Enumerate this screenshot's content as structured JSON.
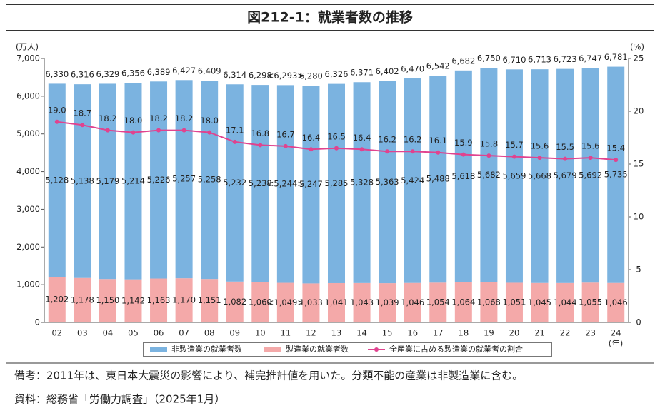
{
  "chart_data": {
    "type": "bar-line",
    "title": "図212-1：就業者数の推移",
    "y_unit": "(万人)",
    "y2_unit": "(%)",
    "x_unit": "(年)",
    "categories": [
      "02",
      "03",
      "04",
      "05",
      "06",
      "07",
      "08",
      "09",
      "10",
      "11",
      "12",
      "13",
      "14",
      "15",
      "16",
      "17",
      "18",
      "19",
      "20",
      "21",
      "22",
      "23",
      "24"
    ],
    "total_labels": [
      "6,330",
      "6,316",
      "6,329",
      "6,356",
      "6,389",
      "6,427",
      "6,409",
      "6,314",
      "6,298",
      "<6,293>",
      "6,280",
      "6,326",
      "6,371",
      "6,402",
      "6,470",
      "6,542",
      "6,682",
      "6,750",
      "6,710",
      "6,713",
      "6,723",
      "6,747",
      "6,781"
    ],
    "series": [
      {
        "name": "非製造業の就業者数",
        "color": "#7bb3e0",
        "values": [
          5128,
          5138,
          5179,
          5214,
          5226,
          5257,
          5258,
          5232,
          5238,
          5244,
          5247,
          5285,
          5328,
          5363,
          5424,
          5488,
          5618,
          5682,
          5659,
          5668,
          5679,
          5692,
          5735
        ],
        "value_labels": [
          "5,128",
          "5,138",
          "5,179",
          "5,214",
          "5,226",
          "5,257",
          "5,258",
          "5,232",
          "5,238",
          "<5,244>",
          "5,247",
          "5,285",
          "5,328",
          "5,363",
          "5,424",
          "5,488",
          "5,618",
          "5,682",
          "5,659",
          "5,668",
          "5,679",
          "5,692",
          "5,735"
        ]
      },
      {
        "name": "製造業の就業者数",
        "color": "#f4a9a9",
        "values": [
          1202,
          1178,
          1150,
          1142,
          1163,
          1170,
          1151,
          1082,
          1060,
          1049,
          1033,
          1041,
          1043,
          1039,
          1046,
          1054,
          1064,
          1068,
          1051,
          1045,
          1044,
          1055,
          1046
        ],
        "value_labels": [
          "1,202",
          "1,178",
          "1,150",
          "1,142",
          "1,163",
          "1,170",
          "1,151",
          "1,082",
          "1,060",
          "<1,049>",
          "1,033",
          "1,041",
          "1,043",
          "1,039",
          "1,046",
          "1,054",
          "1,064",
          "1,068",
          "1,051",
          "1,045",
          "1,044",
          "1,055",
          "1,046"
        ]
      },
      {
        "name": "全産業に占める製造業の就業者の割合",
        "color": "#e0438f",
        "axis": "y2",
        "values": [
          19.0,
          18.7,
          18.2,
          18.0,
          18.2,
          18.2,
          18.0,
          17.1,
          16.8,
          16.7,
          16.4,
          16.5,
          16.4,
          16.2,
          16.2,
          16.1,
          15.9,
          15.8,
          15.7,
          15.6,
          15.5,
          15.6,
          15.4
        ],
        "value_labels": [
          "19.0",
          "18.7",
          "18.2",
          "18.0",
          "18.2",
          "18.2",
          "18.0",
          "17.1",
          "16.8",
          "16.7",
          "16.4",
          "16.5",
          "16.4",
          "16.2",
          "16.2",
          "16.1",
          "15.9",
          "15.8",
          "15.7",
          "15.6",
          "15.5",
          "15.6",
          "15.4"
        ]
      }
    ],
    "ylim": [
      0,
      7000
    ],
    "yticks": [
      0,
      {
        "value": 1000,
        "label": "1,000"
      },
      {
        "value": 2000,
        "label": "2,000"
      },
      {
        "value": 3000,
        "label": "3,000"
      },
      {
        "value": 4000,
        "label": "4,000"
      },
      {
        "value": 5000,
        "label": "5,000"
      },
      {
        "value": 6000,
        "label": "6,000"
      },
      {
        "value": 7000,
        "label": "7,000"
      }
    ],
    "y2lim": [
      0,
      25
    ],
    "y2ticks": [
      0,
      5,
      10,
      15,
      20,
      25
    ],
    "notes": [
      "備考：2011年は、東日本大震災の影響により、補完推計値を用いた。分類不能の産業は非製造業に含む。",
      "資料：総務省「労働力調査」（2025年1月）"
    ]
  }
}
